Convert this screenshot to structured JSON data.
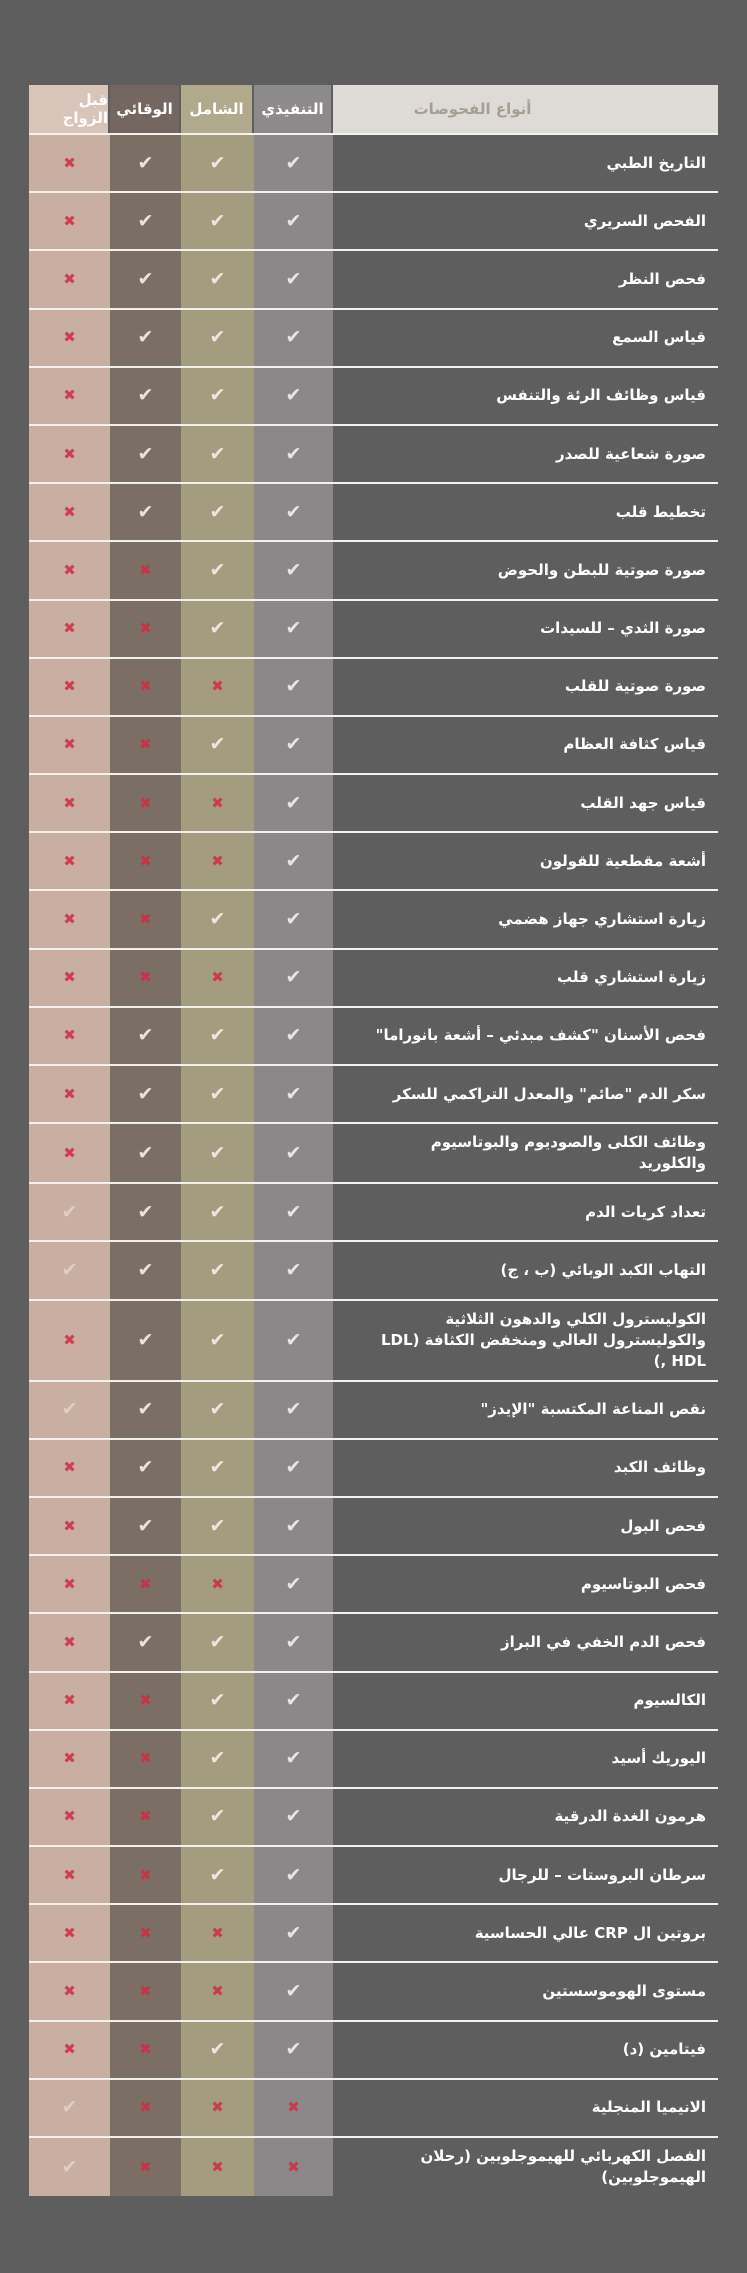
{
  "page": {
    "background": "#5e5e5e"
  },
  "table": {
    "types_header": "أنواع الفحوصات",
    "columns": [
      {
        "id": "executive",
        "label": "التنفيذي",
        "header_color": "#8d8a8b",
        "body_color": "#8c888a"
      },
      {
        "id": "comprehensive",
        "label": "الشامل",
        "header_color": "#b1a98b",
        "body_color": "#a49c7e"
      },
      {
        "id": "preventive",
        "label": "الوقائي",
        "header_color": "#746660",
        "body_color": "#7b6e65"
      },
      {
        "id": "premarital",
        "label": "قبل الزواج",
        "header_color": "#d9c4ba",
        "body_color": "#c9aea2"
      }
    ],
    "icons": {
      "check": "✔",
      "x": "✖"
    },
    "colors": {
      "check": "#f0e9e3",
      "x": "#d22c42",
      "row_line": "#f3f1ee",
      "name_text": "#ffffff",
      "types_header_bg": "#dedad5",
      "types_header_text": "#a79e92"
    },
    "rows": [
      {
        "name": "التاريخ الطبي",
        "executive": "check",
        "comprehensive": "check",
        "preventive": "check",
        "premarital": "x"
      },
      {
        "name": "الفحص السريري",
        "executive": "check",
        "comprehensive": "check",
        "preventive": "check",
        "premarital": "x"
      },
      {
        "name": "فحص النظر",
        "executive": "check",
        "comprehensive": "check",
        "preventive": "check",
        "premarital": "x"
      },
      {
        "name": "قياس السمع",
        "executive": "check",
        "comprehensive": "check",
        "preventive": "check",
        "premarital": "x"
      },
      {
        "name": "قياس وظائف الرئة والتنفس",
        "executive": "check",
        "comprehensive": "check",
        "preventive": "check",
        "premarital": "x"
      },
      {
        "name": "صورة شعاعية للصدر",
        "executive": "check",
        "comprehensive": "check",
        "preventive": "check",
        "premarital": "x"
      },
      {
        "name": "تخطيط قلب",
        "executive": "check",
        "comprehensive": "check",
        "preventive": "check",
        "premarital": "x"
      },
      {
        "name": "صورة صوتية للبطن والحوض",
        "executive": "check",
        "comprehensive": "check",
        "preventive": "x",
        "premarital": "x"
      },
      {
        "name": "صورة الثدي – للسيدات",
        "executive": "check",
        "comprehensive": "check",
        "preventive": "x",
        "premarital": "x"
      },
      {
        "name": "صورة صوتية للقلب",
        "executive": "check",
        "comprehensive": "x",
        "preventive": "x",
        "premarital": "x"
      },
      {
        "name": "قياس كثافة العظام",
        "executive": "check",
        "comprehensive": "check",
        "preventive": "x",
        "premarital": "x"
      },
      {
        "name": "قياس جهد القلب",
        "executive": "check",
        "comprehensive": "x",
        "preventive": "x",
        "premarital": "x"
      },
      {
        "name": "أشعة مقطعية للقولون",
        "executive": "check",
        "comprehensive": "x",
        "preventive": "x",
        "premarital": "x"
      },
      {
        "name": "زيارة استشاري جهاز هضمي",
        "executive": "check",
        "comprehensive": "check",
        "preventive": "x",
        "premarital": "x"
      },
      {
        "name": "زيارة استشاري قلب",
        "executive": "check",
        "comprehensive": "x",
        "preventive": "x",
        "premarital": "x"
      },
      {
        "name": "فحص الأسنان \"كشف مبدئي – أشعة بانوراما\"",
        "executive": "check",
        "comprehensive": "check",
        "preventive": "check",
        "premarital": "x"
      },
      {
        "name": "سكر الدم \"صائم\" والمعدل التراكمي للسكر",
        "executive": "check",
        "comprehensive": "check",
        "preventive": "check",
        "premarital": "x"
      },
      {
        "name": "وظائف الكلى والصوديوم والبوتاسيوم والكلوريد",
        "executive": "check",
        "comprehensive": "check",
        "preventive": "check",
        "premarital": "x"
      },
      {
        "name": "تعداد كريات الدم",
        "executive": "check",
        "comprehensive": "check",
        "preventive": "check",
        "premarital": "check"
      },
      {
        "name": "التهاب الكبد الوبائي (ب ، ج)",
        "executive": "check",
        "comprehensive": "check",
        "preventive": "check",
        "premarital": "check"
      },
      {
        "name": "الكوليسترول الكلي والدهون الثلاثية والكوليسترول العالي ومنخفض الكثافة (LDL , HDL)",
        "executive": "check",
        "comprehensive": "check",
        "preventive": "check",
        "premarital": "x"
      },
      {
        "name": "نقص المناعة المكتسبة \"الإيدز\"",
        "executive": "check",
        "comprehensive": "check",
        "preventive": "check",
        "premarital": "check"
      },
      {
        "name": "وظائف الكبد",
        "executive": "check",
        "comprehensive": "check",
        "preventive": "check",
        "premarital": "x"
      },
      {
        "name": "فحص البول",
        "executive": "check",
        "comprehensive": "check",
        "preventive": "check",
        "premarital": "x"
      },
      {
        "name": "فحص البوتاسيوم",
        "executive": "check",
        "comprehensive": "x",
        "preventive": "x",
        "premarital": "x"
      },
      {
        "name": "فحص الدم الخفي في البراز",
        "executive": "check",
        "comprehensive": "check",
        "preventive": "check",
        "premarital": "x"
      },
      {
        "name": "الكالسيوم",
        "executive": "check",
        "comprehensive": "check",
        "preventive": "x",
        "premarital": "x"
      },
      {
        "name": "اليوريك أسيد",
        "executive": "check",
        "comprehensive": "check",
        "preventive": "x",
        "premarital": "x"
      },
      {
        "name": "هرمون الغدة الدرقية",
        "executive": "check",
        "comprehensive": "check",
        "preventive": "x",
        "premarital": "x"
      },
      {
        "name": "سرطان البروستات – للرجال",
        "executive": "check",
        "comprehensive": "check",
        "preventive": "x",
        "premarital": "x"
      },
      {
        "name": "بروتين ال CRP عالي الحساسية",
        "executive": "check",
        "comprehensive": "x",
        "preventive": "x",
        "premarital": "x"
      },
      {
        "name": "مستوى الهوموسستين",
        "executive": "check",
        "comprehensive": "x",
        "preventive": "x",
        "premarital": "x"
      },
      {
        "name": "فيتامين (د)",
        "executive": "check",
        "comprehensive": "check",
        "preventive": "x",
        "premarital": "x"
      },
      {
        "name": "الانيميا المنجلية",
        "executive": "x",
        "comprehensive": "x",
        "preventive": "x",
        "premarital": "check"
      },
      {
        "name": "الفصل الكهربائي للهيموجلوبين (رحلان الهيموجلوبين)",
        "executive": "x",
        "comprehensive": "x",
        "preventive": "x",
        "premarital": "check"
      }
    ]
  }
}
